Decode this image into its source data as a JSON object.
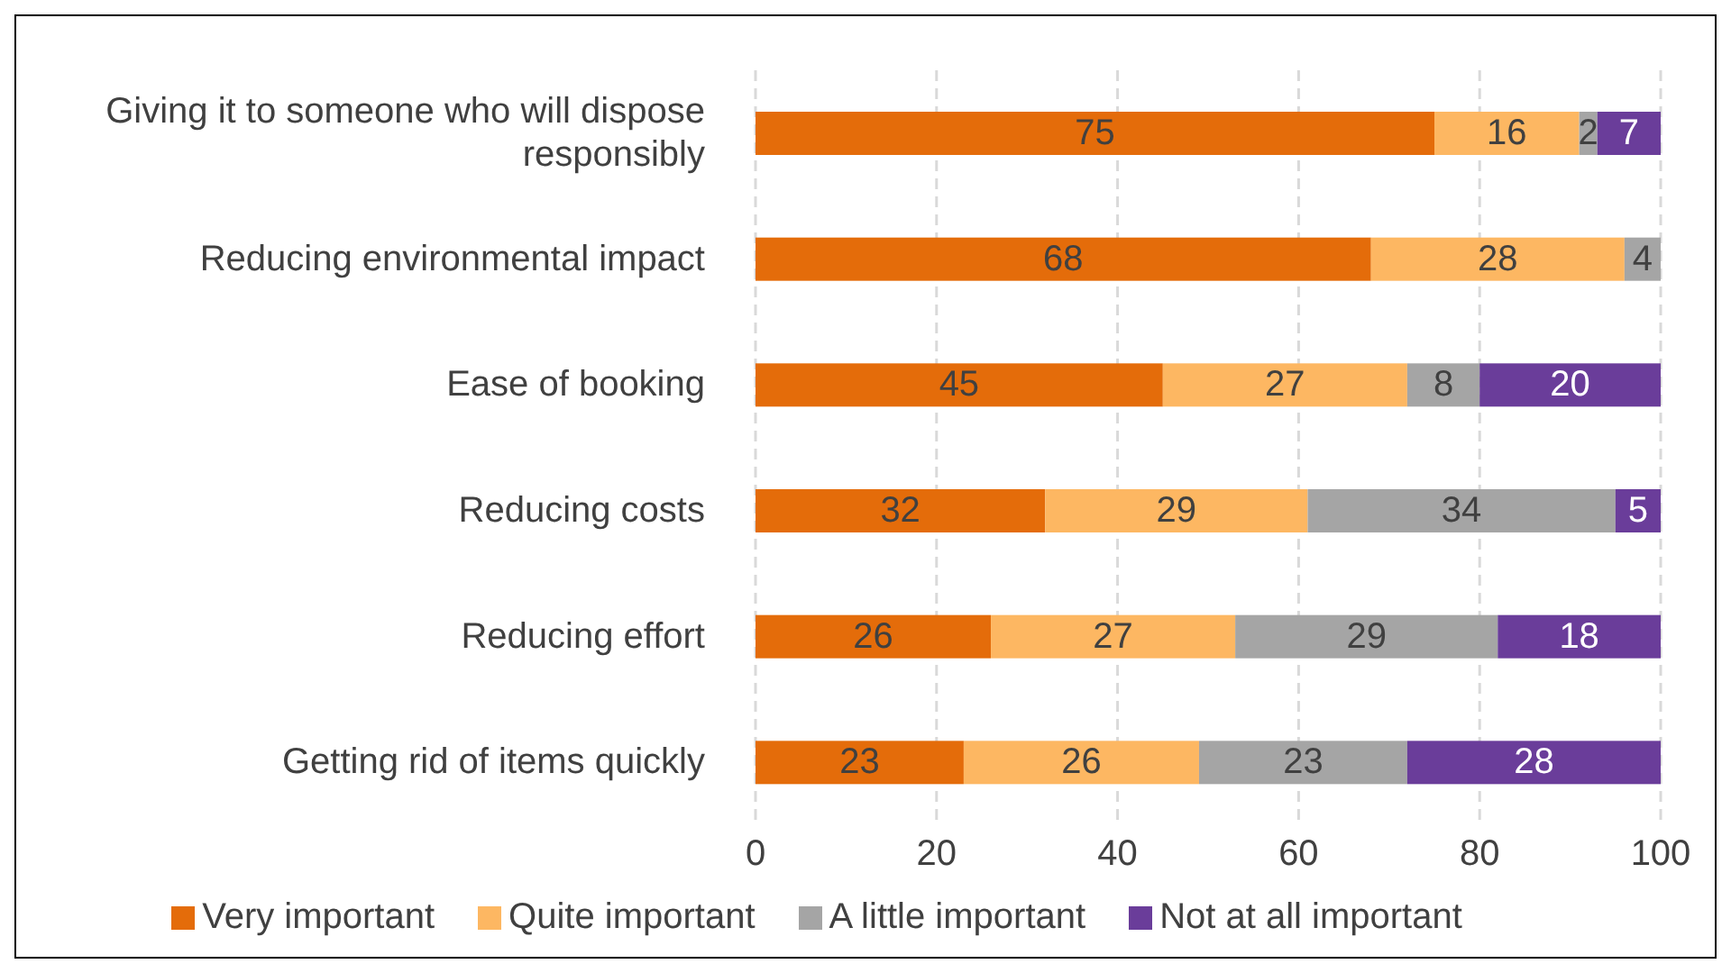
{
  "chart_data": {
    "type": "bar",
    "orientation": "horizontal",
    "stacked": true,
    "categories": [
      "Giving it to someone who will dispose responsibly",
      "Reducing environmental impact",
      "Ease of booking",
      "Reducing costs",
      "Reducing effort",
      "Getting rid of items quickly"
    ],
    "series": [
      {
        "name": "Very important",
        "color": "#e46c0a",
        "values": [
          75,
          68,
          45,
          32,
          26,
          23
        ],
        "value_labels": [
          "75",
          "68",
          "45",
          "32",
          "26",
          "23"
        ]
      },
      {
        "name": "Quite important",
        "color": "#fdb762",
        "values": [
          16,
          28,
          27,
          29,
          27,
          26
        ],
        "value_labels": [
          "16",
          "28",
          "27",
          "29",
          "27",
          "26"
        ]
      },
      {
        "name": "A little important",
        "color": "#a5a5a5",
        "values": [
          2,
          4,
          8,
          34,
          29,
          23
        ],
        "value_labels": [
          "2",
          "4",
          "8",
          "34",
          "29",
          "23"
        ]
      },
      {
        "name": "Not at all important",
        "color": "#6a3d9a",
        "values": [
          7,
          null,
          20,
          5,
          18,
          28
        ],
        "value_labels": [
          "7",
          null,
          "20",
          "5",
          "18",
          "28"
        ]
      }
    ],
    "xlim": [
      0,
      100
    ],
    "xticks": [
      0,
      20,
      40,
      60,
      80,
      100
    ],
    "grid": "x",
    "legend": "bottom"
  }
}
